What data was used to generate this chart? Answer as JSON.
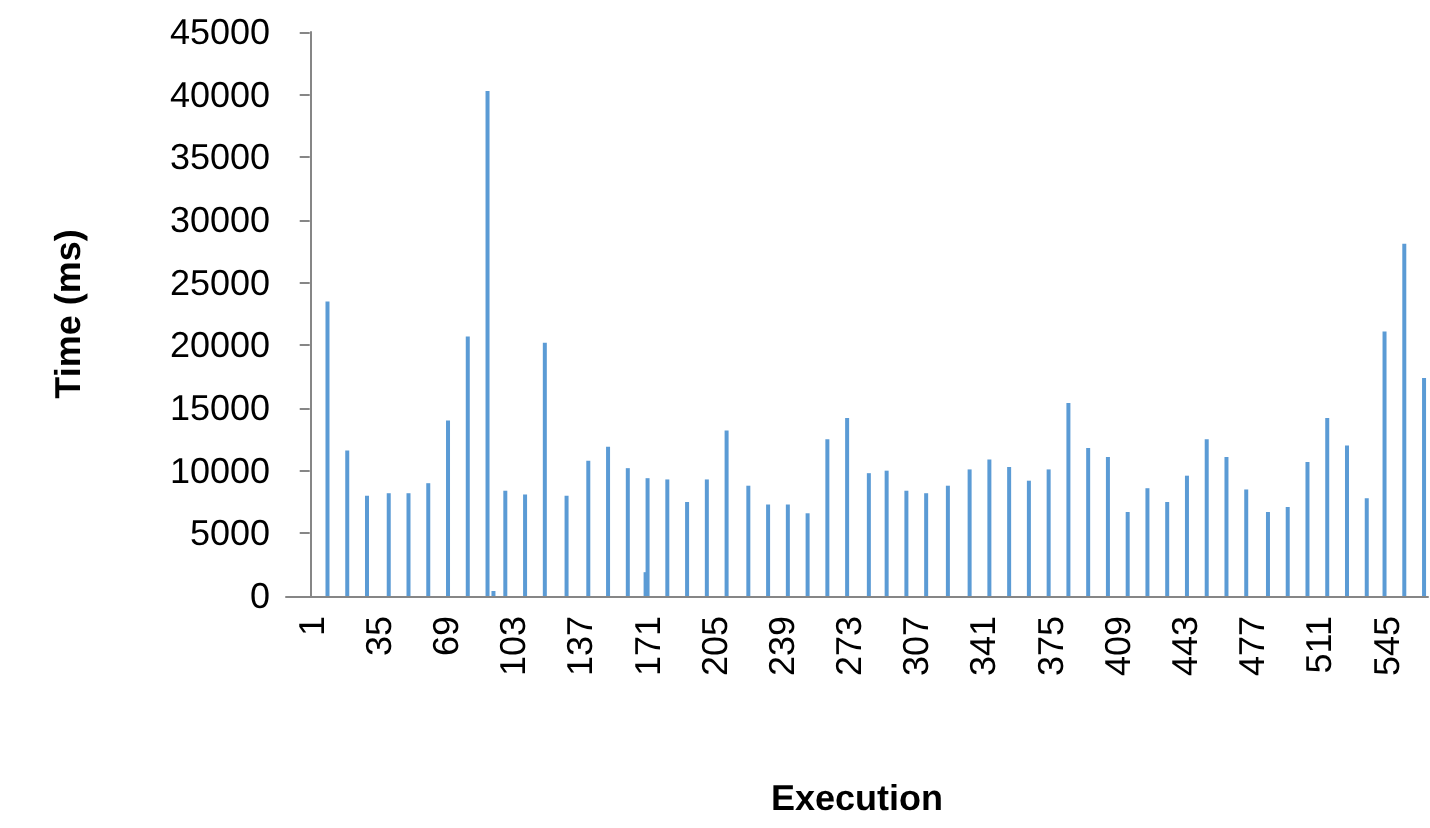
{
  "chart_data": {
    "type": "bar",
    "xlabel": "Execution",
    "ylabel": "Time (ms)",
    "color": "#5b9bd5",
    "x": [
      9,
      19,
      29,
      40,
      50,
      60,
      70,
      80,
      90,
      93,
      99,
      109,
      119,
      130,
      141,
      151,
      161,
      170,
      171,
      181,
      191,
      201,
      211,
      222,
      232,
      242,
      252,
      262,
      272,
      283,
      292,
      302,
      312,
      323,
      334,
      344,
      354,
      364,
      374,
      384,
      394,
      404,
      414,
      424,
      434,
      444,
      454,
      464,
      474,
      485,
      495,
      505,
      515,
      525,
      535,
      544,
      554,
      564
    ],
    "values": [
      23500,
      11600,
      8000,
      8200,
      8200,
      9000,
      14000,
      20700,
      40300,
      400,
      8400,
      8100,
      20200,
      8000,
      10800,
      11900,
      10200,
      1900,
      9400,
      9300,
      7500,
      9300,
      13200,
      8800,
      7300,
      7300,
      6600,
      12500,
      14200,
      9800,
      10000,
      8400,
      8200,
      8800,
      10100,
      10900,
      10300,
      9200,
      10100,
      15400,
      11800,
      11100,
      6700,
      8600,
      7500,
      9600,
      12500,
      11100,
      8500,
      6700,
      7100,
      10700,
      14200,
      12000,
      7800,
      21100,
      28100,
      17400
    ],
    "xlim": [
      -12,
      566
    ],
    "xticks": [
      1,
      35,
      69,
      103,
      137,
      171,
      205,
      239,
      273,
      307,
      341,
      375,
      409,
      443,
      477,
      511,
      545
    ],
    "ylim": [
      0,
      45000
    ],
    "yticks": [
      0,
      5000,
      10000,
      15000,
      20000,
      25000,
      30000,
      35000,
      40000,
      45000
    ],
    "grid": false
  }
}
